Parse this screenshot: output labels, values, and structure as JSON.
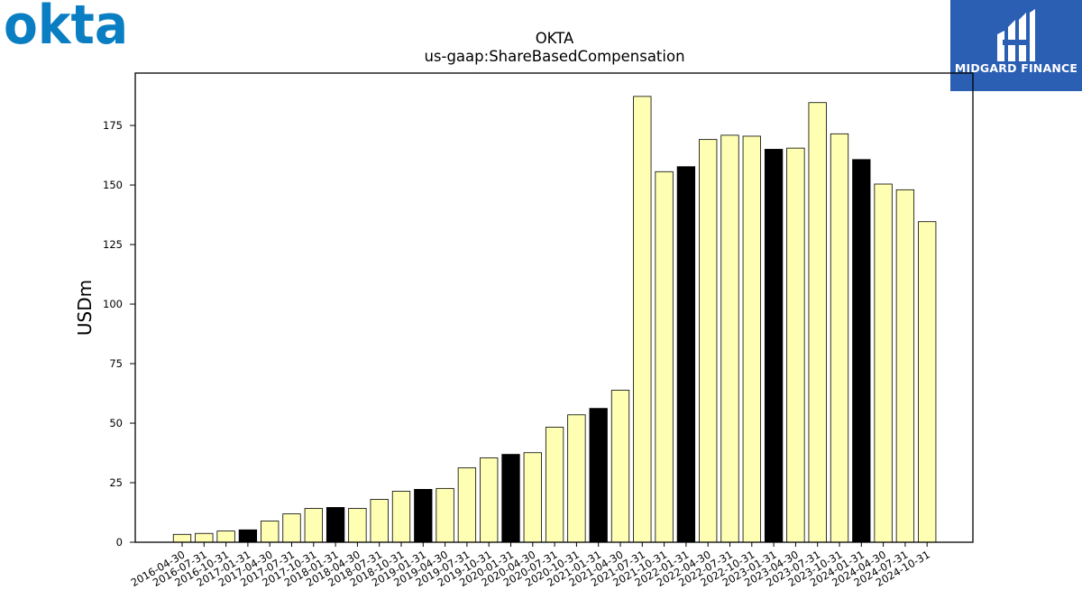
{
  "header": {
    "left_logo_text": "okta",
    "right_logo_text": "MIDGARD FINANCE"
  },
  "chart_data": {
    "type": "bar",
    "title": "OKTA",
    "subtitle": "us-gaap:ShareBasedCompensation",
    "xlabel": "",
    "ylabel": "USDm",
    "ylim": [
      0,
      197
    ],
    "yticks": [
      0,
      25,
      50,
      75,
      100,
      125,
      150,
      175
    ],
    "grid": false,
    "colors": {
      "quarter": "#ffffb3",
      "fiscal_year_end": "#000000",
      "edge": "#000000"
    },
    "categories": [
      "2016-04-30",
      "2016-07-31",
      "2016-10-31",
      "2017-01-31",
      "2017-04-30",
      "2017-07-31",
      "2017-10-31",
      "2018-01-31",
      "2018-04-30",
      "2018-07-31",
      "2018-10-31",
      "2019-01-31",
      "2019-04-30",
      "2019-07-31",
      "2019-10-31",
      "2020-01-31",
      "2020-04-30",
      "2020-07-31",
      "2020-10-31",
      "2021-01-31",
      "2021-04-30",
      "2021-07-31",
      "2021-10-31",
      "2022-01-31",
      "2022-04-30",
      "2022-07-31",
      "2022-10-31",
      "2023-01-31",
      "2023-04-30",
      "2023-07-31",
      "2023-10-31",
      "2024-01-31",
      "2024-04-30",
      "2024-07-31",
      "2024-10-31"
    ],
    "values": [
      3.3,
      3.7,
      4.7,
      5.2,
      8.9,
      11.9,
      14.2,
      14.6,
      14.2,
      18.0,
      21.4,
      22.2,
      22.6,
      31.2,
      35.4,
      36.9,
      37.6,
      48.3,
      53.5,
      56.2,
      63.8,
      187.2,
      155.6,
      157.7,
      169.1,
      170.9,
      170.5,
      165.0,
      165.5,
      184.6,
      171.5,
      160.7,
      150.4,
      148.0,
      134.6
    ],
    "fiscal_year_end": [
      false,
      false,
      false,
      true,
      false,
      false,
      false,
      true,
      false,
      false,
      false,
      true,
      false,
      false,
      false,
      true,
      false,
      false,
      false,
      true,
      false,
      false,
      false,
      true,
      false,
      false,
      false,
      true,
      false,
      false,
      false,
      true,
      false,
      false,
      false
    ]
  }
}
